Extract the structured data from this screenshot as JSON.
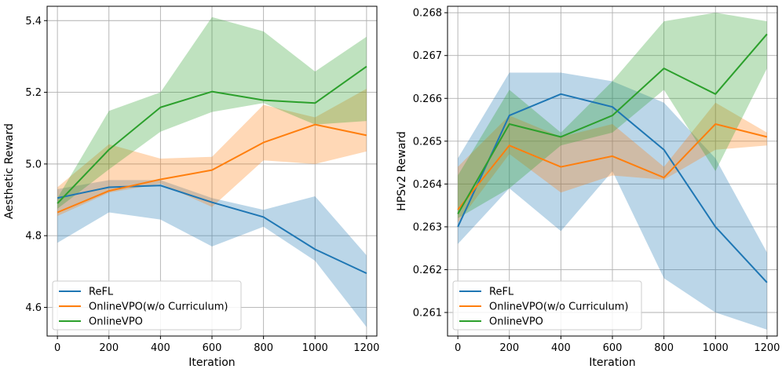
{
  "chart_data": [
    {
      "type": "line",
      "xlabel": "Iteration",
      "ylabel": "Aesthetic Reward",
      "x": [
        0,
        200,
        400,
        600,
        800,
        1000,
        1200
      ],
      "xticks": [
        "0",
        "200",
        "400",
        "600",
        "800",
        "1000",
        "1200"
      ],
      "xlim": [
        -40,
        1240
      ],
      "yticks": [
        "4.6",
        "4.8",
        "5.0",
        "5.2",
        "5.4"
      ],
      "ytick_values": [
        4.6,
        4.8,
        5.0,
        5.2,
        5.4
      ],
      "ylim": [
        4.52,
        5.44
      ],
      "grid": true,
      "legend_position": "lower-left",
      "series": [
        {
          "name": "ReFL",
          "color": "#1f77b4",
          "values": [
            4.905,
            4.935,
            4.94,
            4.893,
            4.852,
            4.762,
            4.695
          ],
          "lower": [
            4.78,
            4.865,
            4.845,
            4.77,
            4.825,
            4.73,
            4.545
          ],
          "upper": [
            4.93,
            4.955,
            4.955,
            4.905,
            4.872,
            4.91,
            4.745
          ]
        },
        {
          "name": "OnlineVPO(w/o Curriculum)",
          "color": "#ff7f0e",
          "values": [
            4.865,
            4.925,
            4.957,
            4.983,
            5.06,
            5.11,
            5.08
          ],
          "lower": [
            4.855,
            4.92,
            4.945,
            4.88,
            5.01,
            5.0,
            5.035
          ],
          "upper": [
            4.935,
            5.055,
            5.015,
            5.02,
            5.165,
            5.13,
            5.21
          ]
        },
        {
          "name": "OnlineVPO",
          "color": "#2ca02c",
          "values": [
            4.89,
            5.04,
            5.158,
            5.202,
            5.178,
            5.17,
            5.272
          ],
          "lower": [
            4.875,
            4.985,
            5.09,
            5.145,
            5.17,
            5.11,
            5.12
          ],
          "upper": [
            4.905,
            5.148,
            5.2,
            5.41,
            5.37,
            5.258,
            5.355
          ]
        }
      ]
    },
    {
      "type": "line",
      "xlabel": "Iteration",
      "ylabel": "HPSv2 Reward",
      "x": [
        0,
        200,
        400,
        600,
        800,
        1000,
        1200
      ],
      "xticks": [
        "0",
        "200",
        "400",
        "600",
        "800",
        "1000",
        "1200"
      ],
      "xlim": [
        -40,
        1240
      ],
      "yticks": [
        "0.261",
        "0.262",
        "0.263",
        "0.264",
        "0.265",
        "0.266",
        "0.267",
        "0.268"
      ],
      "ytick_values": [
        0.261,
        0.262,
        0.263,
        0.264,
        0.265,
        0.266,
        0.267,
        0.268
      ],
      "ylim": [
        0.26045,
        0.26815
      ],
      "grid": true,
      "legend_position": "lower-left",
      "series": [
        {
          "name": "ReFL",
          "color": "#1f77b4",
          "values": [
            0.263,
            0.2656,
            0.2661,
            0.2658,
            0.2648,
            0.263,
            0.2617
          ],
          "lower": [
            0.2626,
            0.2639,
            0.2629,
            0.2643,
            0.2618,
            0.261,
            0.2606
          ],
          "upper": [
            0.2646,
            0.2666,
            0.2666,
            0.2664,
            0.2659,
            0.2646,
            0.2624
          ]
        },
        {
          "name": "OnlineVPO(w/o Curriculum)",
          "color": "#ff7f0e",
          "values": [
            0.2634,
            0.2649,
            0.2644,
            0.26465,
            0.26415,
            0.2654,
            0.2651
          ],
          "lower": [
            0.2631,
            0.2647,
            0.2638,
            0.2642,
            0.2641,
            0.2648,
            0.2649
          ],
          "upper": [
            0.2644,
            0.2656,
            0.2651,
            0.2654,
            0.2644,
            0.2659,
            0.2652
          ]
        },
        {
          "name": "OnlineVPO",
          "color": "#2ca02c",
          "values": [
            0.2633,
            0.2654,
            0.2651,
            0.2656,
            0.2667,
            0.2661,
            0.2675
          ],
          "lower": [
            0.2632,
            0.2639,
            0.2649,
            0.2652,
            0.2662,
            0.2643,
            0.2667
          ],
          "upper": [
            0.2642,
            0.2662,
            0.2652,
            0.2664,
            0.2678,
            0.268,
            0.2678
          ]
        }
      ]
    }
  ]
}
